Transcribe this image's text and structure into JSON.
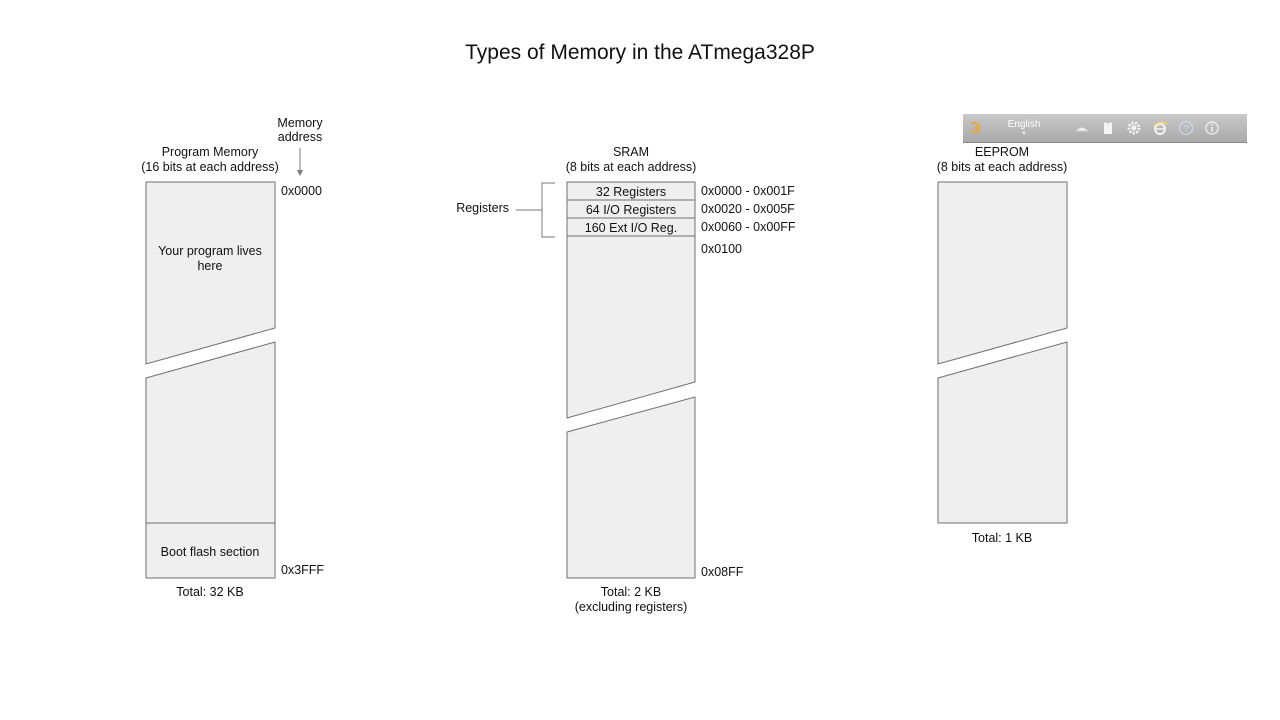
{
  "title": "Types of Memory in the ATmega328P",
  "program_memory": {
    "heading_line1": "Program Memory",
    "heading_line2": "(16 bits at each address)",
    "memory_address_line1": "Memory",
    "memory_address_line2": "address",
    "start_address": "0x0000",
    "end_address": "0x3FFF",
    "body_line1": "Your program lives",
    "body_line2": "here",
    "boot_section": "Boot flash section",
    "total": "Total: 32 KB"
  },
  "sram": {
    "heading_line1": "SRAM",
    "heading_line2": "(8 bits at each address)",
    "registers_label": "Registers",
    "register_rows": [
      {
        "label": "32 Registers",
        "range": "0x0000 - 0x001F"
      },
      {
        "label": "64 I/O Registers",
        "range": "0x0020 - 0x005F"
      },
      {
        "label": "160 Ext I/O Reg.",
        "range": "0x0060 - 0x00FF"
      }
    ],
    "data_start": "0x0100",
    "end_address": "0x08FF",
    "total_line1": "Total: 2 KB",
    "total_line2": "(excluding registers)"
  },
  "eeprom": {
    "heading_line1": "EEPROM",
    "heading_line2": "(8 bits at each address)",
    "total": "Total: 1 KB"
  },
  "toolbar": {
    "language": "English",
    "icons": [
      "input-method-icon",
      "keyboard-icon",
      "skin-icon",
      "settings-icon",
      "browser-icon",
      "help-icon",
      "info-icon"
    ]
  }
}
